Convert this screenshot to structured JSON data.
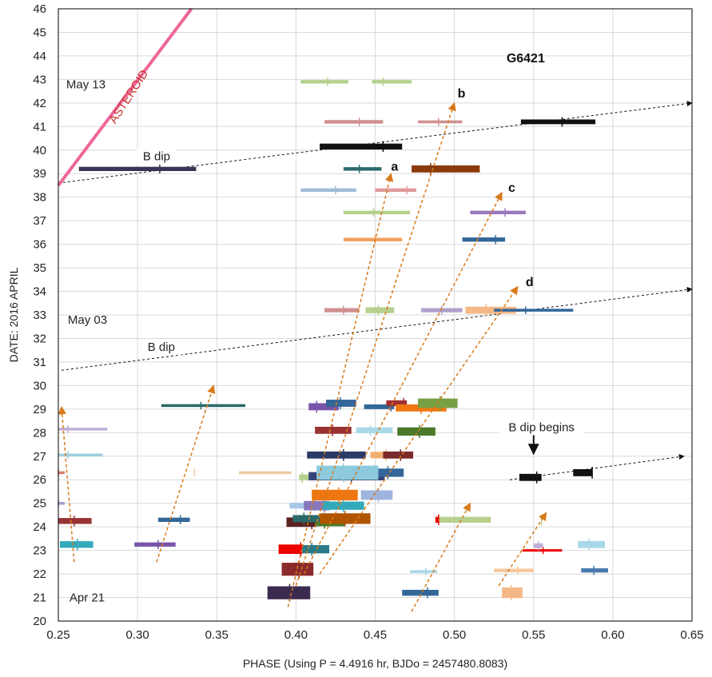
{
  "chart_data": {
    "type": "scatter",
    "title": "G6421",
    "xlabel": "PHASE (Using P = 4.4916 hr, BJDo = 2457480.8083)",
    "ylabel": "DATE:  2016 APRIL",
    "xlim": [
      0.25,
      0.65
    ],
    "ylim": [
      20,
      46
    ],
    "x_ticks": [
      0.25,
      0.3,
      0.35,
      0.4,
      0.45,
      0.5,
      0.55,
      0.6,
      0.65
    ],
    "x_tick_labels": [
      "0.25",
      "0.30",
      "0.35",
      "0.40",
      "0.45",
      "0.50",
      "0.55",
      "0.60",
      "0.65"
    ],
    "y_ticks": [
      20,
      21,
      22,
      23,
      24,
      25,
      26,
      27,
      28,
      29,
      30,
      31,
      32,
      33,
      34,
      35,
      36,
      37,
      38,
      39,
      40,
      41,
      42,
      43,
      44,
      45,
      46
    ],
    "grid": true,
    "legend": "none",
    "date_labels": [
      {
        "text": "Apr 21",
        "x": 0.257,
        "y": 21.0
      },
      {
        "text": "May 03",
        "x": 0.256,
        "y": 32.8
      },
      {
        "text": "May 13",
        "x": 0.255,
        "y": 42.8
      }
    ],
    "annotations": [
      {
        "text": "ASTEROID",
        "x": 0.296,
        "y": 42.2,
        "color": "#cc3333",
        "rotate": -57
      },
      {
        "text": "B dip",
        "x": 0.312,
        "y": 39.6,
        "color": "#222222",
        "rotate": 0
      },
      {
        "text": "B dip",
        "x": 0.315,
        "y": 31.5,
        "color": "#222222",
        "rotate": 0
      },
      {
        "text": "B dip begins",
        "x": 0.555,
        "y": 28.1,
        "color": "#222222",
        "rotate": 0
      }
    ],
    "track_labels": [
      {
        "text": "a",
        "x": 0.46,
        "y": 39.3
      },
      {
        "text": "b",
        "x": 0.502,
        "y": 42.4
      },
      {
        "text": "c",
        "x": 0.534,
        "y": 38.4
      },
      {
        "text": "d",
        "x": 0.545,
        "y": 34.4
      }
    ],
    "asteroid_line": {
      "x": [
        0.25,
        0.334
      ],
      "y": [
        38.5,
        46
      ],
      "color": "#ee6699"
    },
    "b_dip_lines": [
      {
        "x": [
          0.25,
          0.65
        ],
        "y": [
          38.6,
          42.0
        ]
      },
      {
        "x": [
          0.252,
          0.65
        ],
        "y": [
          30.65,
          34.1
        ]
      },
      {
        "x": [
          0.535,
          0.645
        ],
        "y": [
          26.0,
          27.0
        ]
      }
    ],
    "arrow_b_dip_begins": {
      "x": 0.55,
      "y_from": 28.0,
      "y_to": 27.1
    },
    "orange_arrows": [
      {
        "x0": 0.395,
        "y0": 20.6,
        "x1": 0.46,
        "y1": 39.0
      },
      {
        "x0": 0.4,
        "y0": 21.5,
        "x1": 0.5,
        "y1": 42.0
      },
      {
        "x0": 0.405,
        "y0": 22.0,
        "x1": 0.53,
        "y1": 38.2
      },
      {
        "x0": 0.415,
        "y0": 22.0,
        "x1": 0.54,
        "y1": 34.2
      },
      {
        "x0": 0.26,
        "y0": 22.5,
        "x1": 0.252,
        "y1": 29.1
      },
      {
        "x0": 0.312,
        "y0": 22.5,
        "x1": 0.348,
        "y1": 30.0
      },
      {
        "x0": 0.473,
        "y0": 20.4,
        "x1": 0.51,
        "y1": 25.0
      },
      {
        "x0": 0.528,
        "y0": 21.5,
        "x1": 0.558,
        "y1": 24.6
      }
    ],
    "series": [
      {
        "x": 0.262,
        "y": 23.25,
        "x_range": [
          0.251,
          0.272
        ],
        "h": 0.28,
        "color": "#33aabb"
      },
      {
        "x": 0.26,
        "y": 24.25,
        "x_range": [
          0.25,
          0.271
        ],
        "h": 0.25,
        "color": "#993333"
      },
      {
        "x": 0.25,
        "y": 25.0,
        "x_range": [
          0.25,
          0.254
        ],
        "h": 0.12,
        "color": "#a8a0cc"
      },
      {
        "x": 0.25,
        "y": 26.3,
        "x_range": [
          0.25,
          0.254
        ],
        "h": 0.12,
        "color": "#d88070"
      },
      {
        "x": 0.256,
        "y": 27.05,
        "x_range": [
          0.25,
          0.278
        ],
        "h": 0.12,
        "color": "#9fd0e0"
      },
      {
        "x": 0.256,
        "y": 28.15,
        "x_range": [
          0.25,
          0.281
        ],
        "h": 0.12,
        "color": "#c0b0d8"
      },
      {
        "x": 0.313,
        "y": 23.25,
        "x_range": [
          0.298,
          0.324
        ],
        "h": 0.18,
        "color": "#7755aa"
      },
      {
        "x": 0.327,
        "y": 24.3,
        "x_range": [
          0.313,
          0.333
        ],
        "h": 0.18,
        "color": "#336699"
      },
      {
        "x": 0.34,
        "y": 29.15,
        "x_range": [
          0.315,
          0.368
        ],
        "h": 0.12,
        "color": "#2a6a6a"
      },
      {
        "x": 0.336,
        "y": 26.3,
        "x_range": [
          0.364,
          0.397
        ],
        "h": 0.12,
        "color": "#eec9a0"
      },
      {
        "x": 0.314,
        "y": 39.2,
        "x_range": [
          0.263,
          0.337
        ],
        "h": 0.18,
        "color": "#3d3355"
      },
      {
        "x": 0.396,
        "y": 21.2,
        "x_range": [
          0.382,
          0.409
        ],
        "h": 0.55,
        "color": "#3d2a50"
      },
      {
        "x": 0.402,
        "y": 22.2,
        "x_range": [
          0.391,
          0.411
        ],
        "h": 0.55,
        "color": "#8b2a2a"
      },
      {
        "x": 0.403,
        "y": 23.05,
        "x_range": [
          0.389,
          0.404
        ],
        "h": 0.4,
        "color": "#ee0000"
      },
      {
        "x": 0.41,
        "y": 23.05,
        "x_range": [
          0.404,
          0.421
        ],
        "h": 0.35,
        "color": "#2a7a8a"
      },
      {
        "x": 0.41,
        "y": 24.2,
        "x_range": [
          0.394,
          0.413
        ],
        "h": 0.4,
        "color": "#5a2222"
      },
      {
        "x": 0.418,
        "y": 24.2,
        "x_range": [
          0.412,
          0.431
        ],
        "h": 0.35,
        "color": "#4a7a2a"
      },
      {
        "x": 0.431,
        "y": 24.35,
        "x_range": [
          0.415,
          0.447
        ],
        "h": 0.45,
        "color": "#b05500"
      },
      {
        "x": 0.405,
        "y": 24.35,
        "x_range": [
          0.398,
          0.415
        ],
        "h": 0.3,
        "color": "#2a6a6a"
      },
      {
        "x": 0.412,
        "y": 24.9,
        "x_range": [
          0.396,
          0.408
        ],
        "h": 0.25,
        "color": "#a8c8e8"
      },
      {
        "x": 0.418,
        "y": 24.9,
        "x_range": [
          0.405,
          0.421
        ],
        "h": 0.4,
        "color": "#8877bb"
      },
      {
        "x": 0.43,
        "y": 24.9,
        "x_range": [
          0.417,
          0.443
        ],
        "h": 0.35,
        "color": "#33aabb"
      },
      {
        "x": 0.452,
        "y": 25.35,
        "x_range": [
          0.441,
          0.461
        ],
        "h": 0.4,
        "color": "#9fb4de"
      },
      {
        "x": 0.427,
        "y": 25.35,
        "x_range": [
          0.41,
          0.439
        ],
        "h": 0.45,
        "color": "#ee7711"
      },
      {
        "x": 0.404,
        "y": 26.1,
        "x_range": [
          0.402,
          0.411
        ],
        "h": 0.25,
        "color": "#b6d08e"
      },
      {
        "x": 0.435,
        "y": 26.15,
        "x_range": [
          0.408,
          0.456
        ],
        "h": 0.35,
        "color": "#334477"
      },
      {
        "x": 0.458,
        "y": 26.3,
        "x_range": [
          0.451,
          0.468
        ],
        "h": 0.35,
        "color": "#33669a"
      },
      {
        "x": 0.43,
        "y": 26.3,
        "x_range": [
          0.413,
          0.452
        ],
        "h": 0.6,
        "color": "#8ccadd"
      },
      {
        "x": 0.43,
        "y": 27.05,
        "x_range": [
          0.407,
          0.444
        ],
        "h": 0.3,
        "color": "#2a3a66"
      },
      {
        "x": 0.457,
        "y": 27.05,
        "x_range": [
          0.447,
          0.459
        ],
        "h": 0.28,
        "color": "#f0b070"
      },
      {
        "x": 0.466,
        "y": 27.05,
        "x_range": [
          0.455,
          0.474
        ],
        "h": 0.3,
        "color": "#7a2a2a"
      },
      {
        "x": 0.423,
        "y": 28.1,
        "x_range": [
          0.412,
          0.435
        ],
        "h": 0.3,
        "color": "#993333"
      },
      {
        "x": 0.447,
        "y": 28.1,
        "x_range": [
          0.438,
          0.461
        ],
        "h": 0.25,
        "color": "#a8d8e8"
      },
      {
        "x": 0.478,
        "y": 28.05,
        "x_range": [
          0.464,
          0.488
        ],
        "h": 0.35,
        "color": "#4a7a2a"
      },
      {
        "x": 0.413,
        "y": 29.1,
        "x_range": [
          0.408,
          0.427
        ],
        "h": 0.3,
        "color": "#7755aa"
      },
      {
        "x": 0.428,
        "y": 29.25,
        "x_range": [
          0.419,
          0.438
        ],
        "h": 0.3,
        "color": "#336699"
      },
      {
        "x": 0.46,
        "y": 29.1,
        "x_range": [
          0.443,
          0.462
        ],
        "h": 0.2,
        "color": "#336699"
      },
      {
        "x": 0.468,
        "y": 29.25,
        "x_range": [
          0.457,
          0.47
        ],
        "h": 0.25,
        "color": "#a03030"
      },
      {
        "x": 0.479,
        "y": 29.05,
        "x_range": [
          0.463,
          0.495
        ],
        "h": 0.3,
        "color": "#ee7711"
      },
      {
        "x": 0.491,
        "y": 29.25,
        "x_range": [
          0.477,
          0.502
        ],
        "h": 0.4,
        "color": "#77a044"
      },
      {
        "x": 0.483,
        "y": 21.2,
        "x_range": [
          0.467,
          0.49
        ],
        "h": 0.25,
        "color": "#336699"
      },
      {
        "x": 0.536,
        "y": 21.2,
        "x_range": [
          0.53,
          0.543
        ],
        "h": 0.45,
        "color": "#f4b886"
      },
      {
        "x": 0.482,
        "y": 22.1,
        "x_range": [
          0.472,
          0.489
        ],
        "h": 0.12,
        "color": "#a8d8e8"
      },
      {
        "x": 0.54,
        "y": 22.15,
        "x_range": [
          0.525,
          0.55
        ],
        "h": 0.15,
        "color": "#f4c89a"
      },
      {
        "x": 0.588,
        "y": 22.15,
        "x_range": [
          0.58,
          0.597
        ],
        "h": 0.18,
        "color": "#4a7ab0"
      },
      {
        "x": 0.556,
        "y": 23.0,
        "x_range": [
          0.543,
          0.568
        ],
        "h": 0.1,
        "color": "#ee0000"
      },
      {
        "x": 0.553,
        "y": 23.2,
        "x_range": [
          0.55,
          0.556
        ],
        "h": 0.2,
        "color": "#c0b0d8"
      },
      {
        "x": 0.585,
        "y": 23.25,
        "x_range": [
          0.578,
          0.595
        ],
        "h": 0.3,
        "color": "#a8d8e8"
      },
      {
        "x": 0.555,
        "y": 24.3,
        "x_range": [
          0.49,
          0.523
        ],
        "h": 0.25,
        "color": "#b6d08e"
      },
      {
        "x": 0.49,
        "y": 24.3,
        "x_range": [
          0.488,
          0.49
        ],
        "h": 0.25,
        "color": "#ee0000"
      },
      {
        "x": 0.552,
        "y": 26.1,
        "x_range": [
          0.541,
          0.555
        ],
        "h": 0.3,
        "color": "#111111"
      },
      {
        "x": 0.587,
        "y": 26.3,
        "x_range": [
          0.575,
          0.587
        ],
        "h": 0.3,
        "color": "#111111"
      },
      {
        "x": 0.526,
        "y": 36.2,
        "x_range": [
          0.505,
          0.532
        ],
        "h": 0.18,
        "color": "#336699"
      },
      {
        "x": 0.532,
        "y": 37.35,
        "x_range": [
          0.51,
          0.545
        ],
        "h": 0.15,
        "color": "#9977bb"
      },
      {
        "x": 0.43,
        "y": 33.2,
        "x_range": [
          0.418,
          0.44
        ],
        "h": 0.18,
        "color": "#d09090"
      },
      {
        "x": 0.452,
        "y": 33.2,
        "x_range": [
          0.444,
          0.462
        ],
        "h": 0.25,
        "color": "#b6d08e"
      },
      {
        "x": 0.492,
        "y": 33.2,
        "x_range": [
          0.479,
          0.505
        ],
        "h": 0.18,
        "color": "#b0a0cc"
      },
      {
        "x": 0.52,
        "y": 33.2,
        "x_range": [
          0.507,
          0.539
        ],
        "h": 0.3,
        "color": "#f4b886"
      },
      {
        "x": 0.545,
        "y": 33.2,
        "x_range": [
          0.525,
          0.575
        ],
        "h": 0.12,
        "color": "#336699"
      },
      {
        "x": 0.45,
        "y": 36.2,
        "x_range": [
          0.43,
          0.467
        ],
        "h": 0.15,
        "color": "#f0a060"
      },
      {
        "x": 0.449,
        "y": 37.35,
        "x_range": [
          0.43,
          0.472
        ],
        "h": 0.15,
        "color": "#b6d08e"
      },
      {
        "x": 0.425,
        "y": 38.3,
        "x_range": [
          0.403,
          0.438
        ],
        "h": 0.15,
        "color": "#9fbcd8"
      },
      {
        "x": 0.47,
        "y": 38.3,
        "x_range": [
          0.45,
          0.476
        ],
        "h": 0.15,
        "color": "#e09a9a"
      },
      {
        "x": 0.44,
        "y": 39.2,
        "x_range": [
          0.43,
          0.454
        ],
        "h": 0.15,
        "color": "#2a6a6a"
      },
      {
        "x": 0.485,
        "y": 39.2,
        "x_range": [
          0.473,
          0.516
        ],
        "h": 0.3,
        "color": "#8b3a0a"
      },
      {
        "x": 0.455,
        "y": 40.15,
        "x_range": [
          0.415,
          0.467
        ],
        "h": 0.25,
        "color": "#111111"
      },
      {
        "x": 0.44,
        "y": 41.2,
        "x_range": [
          0.418,
          0.455
        ],
        "h": 0.15,
        "color": "#d09090"
      },
      {
        "x": 0.49,
        "y": 41.2,
        "x_range": [
          0.477,
          0.505
        ],
        "h": 0.12,
        "color": "#d09090"
      },
      {
        "x": 0.568,
        "y": 41.2,
        "x_range": [
          0.542,
          0.589
        ],
        "h": 0.2,
        "color": "#111111"
      },
      {
        "x": 0.42,
        "y": 42.9,
        "x_range": [
          0.403,
          0.433
        ],
        "h": 0.15,
        "color": "#b6d08e"
      },
      {
        "x": 0.455,
        "y": 42.9,
        "x_range": [
          0.448,
          0.473
        ],
        "h": 0.15,
        "color": "#b6d08e"
      }
    ]
  }
}
